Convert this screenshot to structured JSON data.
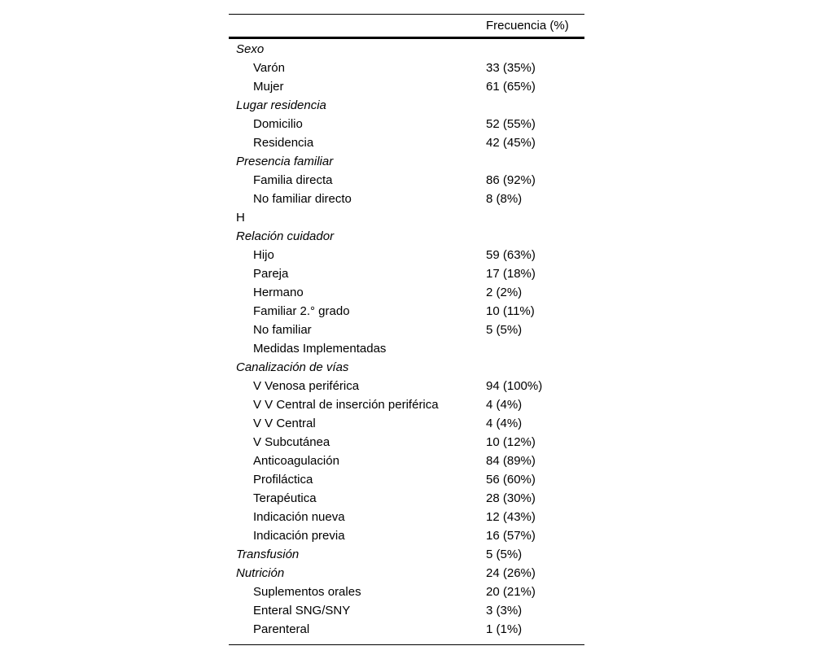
{
  "table": {
    "header": {
      "frequency": "Frecuencia (%)"
    },
    "rows": [
      {
        "label": "Sexo",
        "value": "",
        "style": "section"
      },
      {
        "label": "Varón",
        "value": "33 (35%)",
        "style": "item"
      },
      {
        "label": "Mujer",
        "value": "61 (65%)",
        "style": "item"
      },
      {
        "label": "Lugar residencia",
        "value": "",
        "style": "section"
      },
      {
        "label": "Domicilio",
        "value": "52 (55%)",
        "style": "item"
      },
      {
        "label": "Residencia",
        "value": "42 (45%)",
        "style": "item"
      },
      {
        "label": "Presencia familiar",
        "value": "",
        "style": "section"
      },
      {
        "label": "Familia directa",
        "value": "86 (92%)",
        "style": "item"
      },
      {
        "label": "No familiar directo",
        "value": "8 (8%)",
        "style": "item"
      },
      {
        "label": "H",
        "value": "",
        "style": "plain"
      },
      {
        "label": "Relación cuidador",
        "value": "",
        "style": "section"
      },
      {
        "label": "Hijo",
        "value": "59 (63%)",
        "style": "item"
      },
      {
        "label": "Pareja",
        "value": "17 (18%)",
        "style": "item"
      },
      {
        "label": "Hermano",
        "value": "2 (2%)",
        "style": "item"
      },
      {
        "label": "Familiar 2.° grado",
        "value": "10 (11%)",
        "style": "item"
      },
      {
        "label": "No familiar",
        "value": "5 (5%)",
        "style": "item"
      },
      {
        "label": "Medidas Implementadas",
        "value": "",
        "style": "item"
      },
      {
        "label": "Canalización de vías",
        "value": "",
        "style": "section"
      },
      {
        "label": "V Venosa periférica",
        "value": "94 (100%)",
        "style": "item"
      },
      {
        "label": "V V Central de inserción periférica",
        "value": "4 (4%)",
        "style": "item"
      },
      {
        "label": "V V Central",
        "value": "4 (4%)",
        "style": "item"
      },
      {
        "label": "V Subcutánea",
        "value": "10 (12%)",
        "style": "item"
      },
      {
        "label": "Anticoagulación",
        "value": "84 (89%)",
        "style": "item"
      },
      {
        "label": "Profiláctica",
        "value": "56 (60%)",
        "style": "item"
      },
      {
        "label": "Terapéutica",
        "value": "28 (30%)",
        "style": "item"
      },
      {
        "label": "Indicación nueva",
        "value": "12 (43%)",
        "style": "item"
      },
      {
        "label": "Indicación previa",
        "value": "16 (57%)",
        "style": "item"
      },
      {
        "label": "Transfusión",
        "value": "5 (5%)",
        "style": "section"
      },
      {
        "label": "Nutrición",
        "value": "24 (26%)",
        "style": "section"
      },
      {
        "label": "Suplementos orales",
        "value": "20 (21%)",
        "style": "item"
      },
      {
        "label": "Enteral SNG/SNY",
        "value": "3 (3%)",
        "style": "item"
      },
      {
        "label": "Parenteral",
        "value": "1 (1%)",
        "style": "item"
      }
    ],
    "colors": {
      "text": "#000000",
      "rule": "#000000",
      "background": "#ffffff"
    }
  }
}
